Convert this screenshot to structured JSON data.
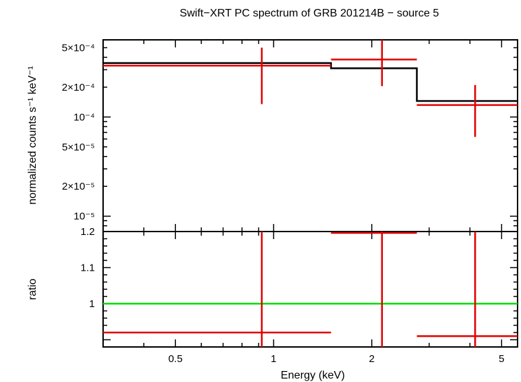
{
  "chart_data": {
    "title": "Swift−XRT PC spectrum of GRB 201214B − source 5",
    "x_axis": {
      "label": "Energy (keV)",
      "scale": "log",
      "range": [
        0.3,
        5.6
      ],
      "major_ticks": [
        0.5,
        1,
        2,
        5
      ],
      "tick_labels": [
        "0.5",
        "1",
        "2",
        "5"
      ]
    },
    "panels": [
      {
        "id": "spectrum",
        "type": "step-with-errorbars",
        "ylabel": "normalized counts s⁻¹ keV⁻¹",
        "y_scale": "log",
        "y_range": [
          7e-06,
          0.0006
        ],
        "y_tick_labels": [
          {
            "value": 0.0005,
            "text": "5×10⁻⁴"
          },
          {
            "value": 0.0002,
            "text": "2×10⁻⁴"
          },
          {
            "value": 0.0001,
            "text": "10⁻⁴"
          },
          {
            "value": 5e-05,
            "text": "5×10⁻⁵"
          },
          {
            "value": 2e-05,
            "text": "2×10⁻⁵"
          },
          {
            "value": 1e-05,
            "text": "10⁻⁵"
          }
        ],
        "model": {
          "color": "#000000",
          "bins": [
            {
              "x_lo": 0.3,
              "x_hi": 1.5,
              "y": 0.00035
            },
            {
              "x_lo": 1.5,
              "x_hi": 2.75,
              "y": 0.00031
            },
            {
              "x_lo": 2.75,
              "x_hi": 5.6,
              "y": 0.000145
            }
          ]
        },
        "data": {
          "color": "#e00000",
          "points": [
            {
              "x": 0.92,
              "x_lo": 0.3,
              "x_hi": 1.5,
              "y": 0.00033,
              "y_lo": 0.000135,
              "y_hi": 0.0005
            },
            {
              "x": 2.15,
              "x_lo": 1.5,
              "x_hi": 2.75,
              "y": 0.00038,
              "y_lo": 0.000205,
              "y_hi": 0.00062
            },
            {
              "x": 4.15,
              "x_lo": 2.75,
              "x_hi": 5.6,
              "y": 0.000132,
              "y_lo": 6.3e-05,
              "y_hi": 0.00021
            }
          ]
        }
      },
      {
        "id": "ratio",
        "type": "ratio",
        "ylabel": "ratio",
        "y_scale": "linear",
        "y_range": [
          0.88,
          1.2
        ],
        "y_tick_labels": [
          {
            "value": 1.2,
            "text": "1.2"
          },
          {
            "value": 1.1,
            "text": "1.1"
          },
          {
            "value": 1.0,
            "text": "1"
          }
        ],
        "reference_line": {
          "y": 1.0,
          "color": "#00e000"
        },
        "data": {
          "color": "#e00000",
          "points": [
            {
              "x": 0.92,
              "x_lo": 0.3,
              "x_hi": 1.5,
              "y": 0.92,
              "y_lo": 0.88,
              "y_hi": 1.2
            },
            {
              "x": 2.15,
              "x_lo": 1.5,
              "x_hi": 2.75,
              "y": 1.2,
              "y_lo": 0.88,
              "y_hi": 1.2
            },
            {
              "x": 4.15,
              "x_lo": 2.75,
              "x_hi": 5.6,
              "y": 0.91,
              "y_lo": 0.88,
              "y_hi": 1.2
            }
          ]
        }
      }
    ]
  }
}
